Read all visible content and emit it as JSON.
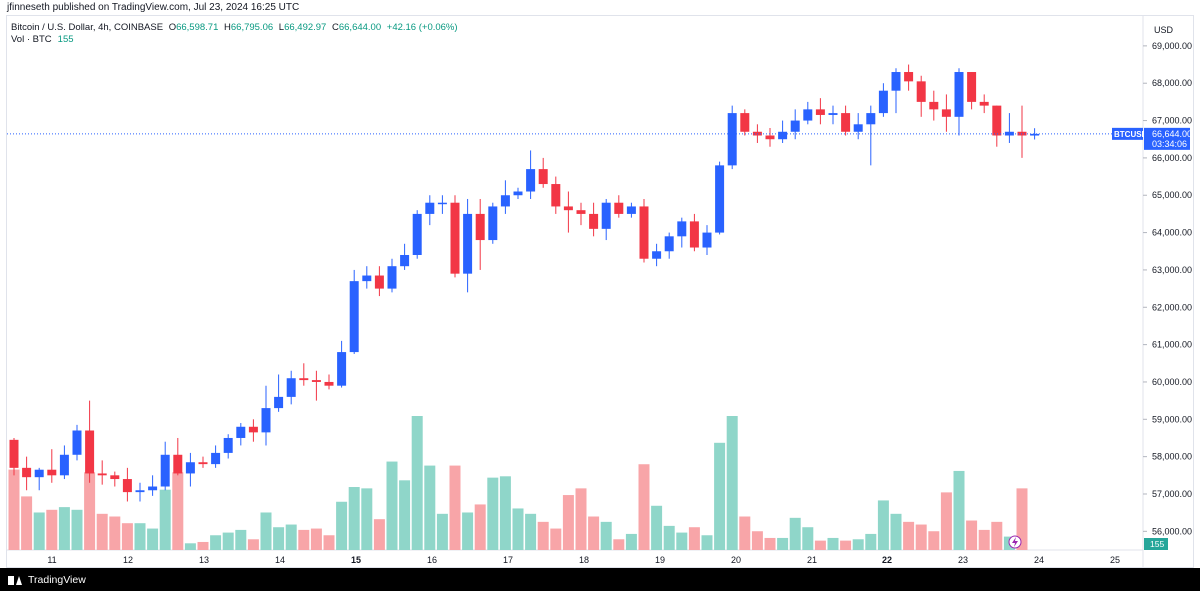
{
  "header": {
    "published_by": "jfinneseth published on TradingView.com, Jul 23, 2024 16:25 UTC"
  },
  "legend": {
    "symbol": "Bitcoin / U.S. Dollar, 4h, COINBASE",
    "open_label": "O",
    "open": "66,598.71",
    "high_label": "H",
    "high": "66,795.06",
    "low_label": "L",
    "low": "66,492.97",
    "close_label": "C",
    "close": "66,644.00",
    "change": "+42.16 (+0.06%)"
  },
  "volume_legend": {
    "label": "Vol · BTC",
    "value": "155"
  },
  "price_axis": {
    "currency": "USD"
  },
  "last_price": {
    "symbol": "BTCUSD",
    "price": "66,644.00",
    "countdown": "03:34:06"
  },
  "volume_badge": "155",
  "footer": {
    "brand": "TradingView"
  },
  "colors": {
    "up": "#2962ff",
    "down": "#f23645",
    "vol_up": "#8fd6c9",
    "vol_down": "#f8a5a8",
    "last_line": "#2962ff"
  },
  "chart_data": {
    "type": "candlestick",
    "interval": "4h",
    "ylim": [
      55500,
      69800
    ],
    "yticks": [
      56000,
      57000,
      58000,
      59000,
      60000,
      61000,
      62000,
      63000,
      64000,
      65000,
      66000,
      67000,
      68000,
      69000
    ],
    "ytick_labels": [
      "56,000.00",
      "57,000.00",
      "58,000.00",
      "59,000.00",
      "60,000.00",
      "61,000.00",
      "62,000.00",
      "63,000.00",
      "64,000.00",
      "65,000.00",
      "66,000.00",
      "67,000.00",
      "68,000.00",
      "69,000.00"
    ],
    "xtick_labels": [
      "11",
      "12",
      "13",
      "14",
      "15",
      "16",
      "17",
      "18",
      "19",
      "20",
      "21",
      "22",
      "23",
      "24",
      "25"
    ],
    "xtick_bold": [
      "15",
      "22"
    ],
    "candles": [
      {
        "o": 58450,
        "h": 58500,
        "l": 57500,
        "c": 57700,
        "v": 0.6
      },
      {
        "o": 57700,
        "h": 58000,
        "l": 57100,
        "c": 57450,
        "v": 0.4
      },
      {
        "o": 57450,
        "h": 57700,
        "l": 57100,
        "c": 57650,
        "v": 0.28
      },
      {
        "o": 57650,
        "h": 58200,
        "l": 57300,
        "c": 57500,
        "v": 0.3
      },
      {
        "o": 57500,
        "h": 58300,
        "l": 57400,
        "c": 58050,
        "v": 0.32
      },
      {
        "o": 58050,
        "h": 58850,
        "l": 57900,
        "c": 58700,
        "v": 0.3
      },
      {
        "o": 58700,
        "h": 59500,
        "l": 57300,
        "c": 57550,
        "v": 0.58
      },
      {
        "o": 57550,
        "h": 57900,
        "l": 57250,
        "c": 57500,
        "v": 0.27
      },
      {
        "o": 57500,
        "h": 57600,
        "l": 57200,
        "c": 57400,
        "v": 0.25
      },
      {
        "o": 57400,
        "h": 57700,
        "l": 56800,
        "c": 57050,
        "v": 0.2
      },
      {
        "o": 57050,
        "h": 57300,
        "l": 56800,
        "c": 57100,
        "v": 0.2
      },
      {
        "o": 57100,
        "h": 57500,
        "l": 56950,
        "c": 57200,
        "v": 0.16
      },
      {
        "o": 57200,
        "h": 58400,
        "l": 57100,
        "c": 58050,
        "v": 0.45
      },
      {
        "o": 58050,
        "h": 58500,
        "l": 57500,
        "c": 57550,
        "v": 0.58
      },
      {
        "o": 57550,
        "h": 58100,
        "l": 57200,
        "c": 57850,
        "v": 0.05
      },
      {
        "o": 57850,
        "h": 58000,
        "l": 57700,
        "c": 57800,
        "v": 0.06
      },
      {
        "o": 57800,
        "h": 58300,
        "l": 57700,
        "c": 58100,
        "v": 0.11
      },
      {
        "o": 58100,
        "h": 58600,
        "l": 57950,
        "c": 58500,
        "v": 0.13
      },
      {
        "o": 58500,
        "h": 58900,
        "l": 58300,
        "c": 58800,
        "v": 0.15
      },
      {
        "o": 58800,
        "h": 59000,
        "l": 58400,
        "c": 58650,
        "v": 0.08
      },
      {
        "o": 58650,
        "h": 59900,
        "l": 58300,
        "c": 59300,
        "v": 0.28
      },
      {
        "o": 59300,
        "h": 60200,
        "l": 59200,
        "c": 59600,
        "v": 0.17
      },
      {
        "o": 59600,
        "h": 60300,
        "l": 59400,
        "c": 60100,
        "v": 0.19
      },
      {
        "o": 60100,
        "h": 60500,
        "l": 59900,
        "c": 60050,
        "v": 0.15
      },
      {
        "o": 60050,
        "h": 60300,
        "l": 59500,
        "c": 60000,
        "v": 0.16
      },
      {
        "o": 60000,
        "h": 60200,
        "l": 59800,
        "c": 59900,
        "v": 0.11
      },
      {
        "o": 59900,
        "h": 61100,
        "l": 59850,
        "c": 60800,
        "v": 0.36
      },
      {
        "o": 60800,
        "h": 63000,
        "l": 60750,
        "c": 62700,
        "v": 0.47
      },
      {
        "o": 62700,
        "h": 63100,
        "l": 62500,
        "c": 62850,
        "v": 0.46
      },
      {
        "o": 62850,
        "h": 63100,
        "l": 62300,
        "c": 62500,
        "v": 0.23
      },
      {
        "o": 62500,
        "h": 63300,
        "l": 62400,
        "c": 63100,
        "v": 0.66
      },
      {
        "o": 63100,
        "h": 63700,
        "l": 63000,
        "c": 63400,
        "v": 0.52
      },
      {
        "o": 63400,
        "h": 64600,
        "l": 63300,
        "c": 64500,
        "v": 1.0
      },
      {
        "o": 64500,
        "h": 65000,
        "l": 64200,
        "c": 64800,
        "v": 0.63
      },
      {
        "o": 64800,
        "h": 65000,
        "l": 64500,
        "c": 64800,
        "v": 0.27
      },
      {
        "o": 64800,
        "h": 65000,
        "l": 62800,
        "c": 62900,
        "v": 0.63
      },
      {
        "o": 62900,
        "h": 64900,
        "l": 62400,
        "c": 64500,
        "v": 0.28
      },
      {
        "o": 64500,
        "h": 64900,
        "l": 63000,
        "c": 63800,
        "v": 0.34
      },
      {
        "o": 63800,
        "h": 64800,
        "l": 63700,
        "c": 64700,
        "v": 0.54
      },
      {
        "o": 64700,
        "h": 65400,
        "l": 64500,
        "c": 65000,
        "v": 0.55
      },
      {
        "o": 65000,
        "h": 65200,
        "l": 64900,
        "c": 65100,
        "v": 0.31
      },
      {
        "o": 65100,
        "h": 66200,
        "l": 64900,
        "c": 65700,
        "v": 0.27
      },
      {
        "o": 65700,
        "h": 66000,
        "l": 65200,
        "c": 65300,
        "v": 0.21
      },
      {
        "o": 65300,
        "h": 65500,
        "l": 64500,
        "c": 64700,
        "v": 0.16
      },
      {
        "o": 64700,
        "h": 65100,
        "l": 64000,
        "c": 64600,
        "v": 0.41
      },
      {
        "o": 64600,
        "h": 64800,
        "l": 64200,
        "c": 64500,
        "v": 0.46
      },
      {
        "o": 64500,
        "h": 64800,
        "l": 63900,
        "c": 64100,
        "v": 0.25
      },
      {
        "o": 64100,
        "h": 64900,
        "l": 63800,
        "c": 64800,
        "v": 0.21
      },
      {
        "o": 64800,
        "h": 65000,
        "l": 64400,
        "c": 64500,
        "v": 0.08
      },
      {
        "o": 64500,
        "h": 64800,
        "l": 64400,
        "c": 64700,
        "v": 0.12
      },
      {
        "o": 64700,
        "h": 64900,
        "l": 63200,
        "c": 63300,
        "v": 0.64
      },
      {
        "o": 63300,
        "h": 63700,
        "l": 63100,
        "c": 63500,
        "v": 0.33
      },
      {
        "o": 63500,
        "h": 64000,
        "l": 63300,
        "c": 63900,
        "v": 0.18
      },
      {
        "o": 63900,
        "h": 64400,
        "l": 63600,
        "c": 64300,
        "v": 0.13
      },
      {
        "o": 64300,
        "h": 64500,
        "l": 63500,
        "c": 63600,
        "v": 0.17
      },
      {
        "o": 63600,
        "h": 64200,
        "l": 63400,
        "c": 64000,
        "v": 0.11
      },
      {
        "o": 64000,
        "h": 65900,
        "l": 63950,
        "c": 65800,
        "v": 0.8
      },
      {
        "o": 65800,
        "h": 67400,
        "l": 65700,
        "c": 67200,
        "v": 1.0
      },
      {
        "o": 67200,
        "h": 67300,
        "l": 66600,
        "c": 66700,
        "v": 0.25
      },
      {
        "o": 66700,
        "h": 66900,
        "l": 66400,
        "c": 66600,
        "v": 0.14
      },
      {
        "o": 66600,
        "h": 66800,
        "l": 66300,
        "c": 66500,
        "v": 0.09
      },
      {
        "o": 66500,
        "h": 67000,
        "l": 66400,
        "c": 66700,
        "v": 0.09
      },
      {
        "o": 66700,
        "h": 67300,
        "l": 66500,
        "c": 67000,
        "v": 0.24
      },
      {
        "o": 67000,
        "h": 67500,
        "l": 66900,
        "c": 67300,
        "v": 0.17
      },
      {
        "o": 67300,
        "h": 67600,
        "l": 66900,
        "c": 67150,
        "v": 0.07
      },
      {
        "o": 67150,
        "h": 67400,
        "l": 66900,
        "c": 67200,
        "v": 0.09
      },
      {
        "o": 67200,
        "h": 67400,
        "l": 66600,
        "c": 66700,
        "v": 0.07
      },
      {
        "o": 66700,
        "h": 67200,
        "l": 66500,
        "c": 66900,
        "v": 0.08
      },
      {
        "o": 66900,
        "h": 67400,
        "l": 65800,
        "c": 67200,
        "v": 0.12
      },
      {
        "o": 67200,
        "h": 68000,
        "l": 67100,
        "c": 67800,
        "v": 0.37
      },
      {
        "o": 67800,
        "h": 68400,
        "l": 67200,
        "c": 68300,
        "v": 0.27
      },
      {
        "o": 68300,
        "h": 68500,
        "l": 67800,
        "c": 68050,
        "v": 0.21
      },
      {
        "o": 68050,
        "h": 68200,
        "l": 67100,
        "c": 67500,
        "v": 0.19
      },
      {
        "o": 67500,
        "h": 67800,
        "l": 67000,
        "c": 67300,
        "v": 0.14
      },
      {
        "o": 67300,
        "h": 67700,
        "l": 66700,
        "c": 67100,
        "v": 0.43
      },
      {
        "o": 67100,
        "h": 68400,
        "l": 66600,
        "c": 68300,
        "v": 0.59
      },
      {
        "o": 68300,
        "h": 68300,
        "l": 67300,
        "c": 67500,
        "v": 0.22
      },
      {
        "o": 67500,
        "h": 67700,
        "l": 67200,
        "c": 67400,
        "v": 0.15
      },
      {
        "o": 67400,
        "h": 67400,
        "l": 66300,
        "c": 66600,
        "v": 0.21
      },
      {
        "o": 66600,
        "h": 67200,
        "l": 66400,
        "c": 66700,
        "v": 0.1
      },
      {
        "o": 66700,
        "h": 67400,
        "l": 66000,
        "c": 66600,
        "v": 0.46
      },
      {
        "o": 66598.71,
        "h": 66795.06,
        "l": 66492.97,
        "c": 66644,
        "v": 0.0
      }
    ]
  }
}
